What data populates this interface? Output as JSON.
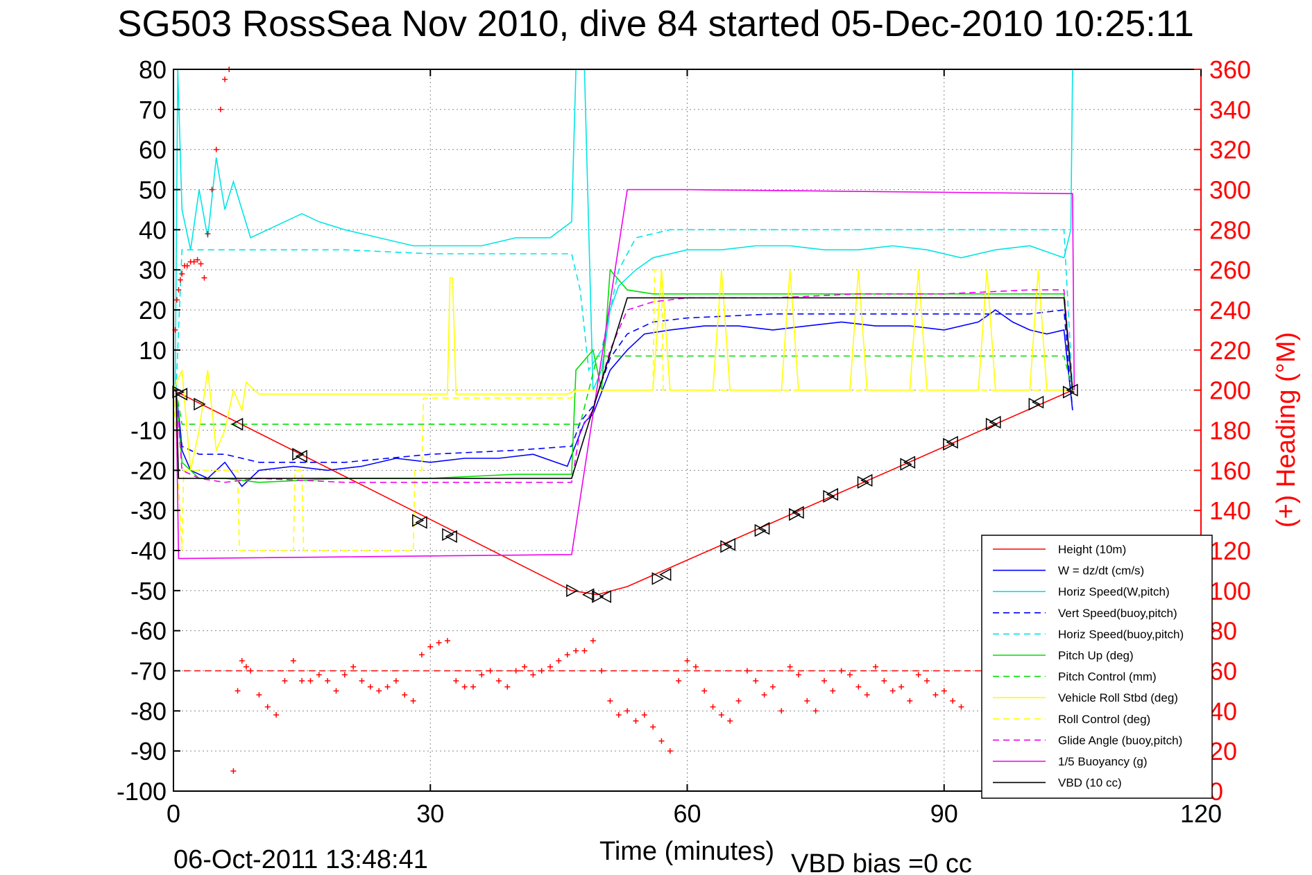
{
  "chart_data": {
    "type": "line",
    "title": "SG503 RossSea Nov 2010, dive 84 started 05-Dec-2010 10:25:11",
    "xlabel": "Time (minutes)",
    "ylabel_right": "(+) Heading (°M)",
    "footer_left": "06-Oct-2011 13:48:41",
    "footer_note": "VBD bias =0 cc",
    "xlim": [
      0,
      120
    ],
    "ylim": [
      -100,
      80
    ],
    "ylim_right": [
      0,
      360
    ],
    "x_ticks": [
      0,
      30,
      60,
      90,
      120
    ],
    "y_ticks": [
      -100,
      -90,
      -80,
      -70,
      -60,
      -50,
      -40,
      -30,
      -20,
      -10,
      0,
      10,
      20,
      30,
      40,
      50,
      60,
      70,
      80
    ],
    "y_right_ticks": [
      0,
      20,
      40,
      60,
      80,
      100,
      120,
      140,
      160,
      180,
      200,
      220,
      240,
      260,
      280,
      300,
      320,
      340,
      360
    ],
    "grid": true,
    "legend_position": "bottom-right",
    "colors": {
      "red": "#ff0000",
      "blue": "#0000ff",
      "cyan": "#00e5e5",
      "green": "#00dd00",
      "yellow": "#ffff00",
      "magenta": "#ee00ee",
      "black": "#000000",
      "grid": "#888888"
    },
    "series": [
      {
        "name": "Height (10m)",
        "color": "#ff0000",
        "style": "solid",
        "x": [
          0,
          46.5,
          49.5,
          53,
          105
        ],
        "y": [
          0,
          -50,
          -51,
          -49,
          0
        ]
      },
      {
        "name": "W = dz/dt (cm/s)",
        "color": "#0000ff",
        "style": "solid",
        "x": [
          0.3,
          0.8,
          1,
          2,
          4,
          6,
          8,
          10,
          14,
          18,
          22,
          26,
          30,
          34,
          38,
          42,
          46,
          48,
          49,
          51,
          53,
          55,
          58,
          62,
          66,
          70,
          74,
          78,
          82,
          86,
          90,
          94,
          96,
          98,
          100,
          102,
          104,
          105
        ],
        "y": [
          0,
          -10,
          -15,
          -20,
          -22,
          -18,
          -24,
          -20,
          -19,
          -20,
          -19,
          -17,
          -18,
          -17,
          -17,
          -16,
          -19,
          -8,
          -6,
          5,
          10,
          14,
          15,
          16,
          16,
          15,
          16,
          17,
          16,
          16,
          15,
          17,
          20,
          17,
          15,
          14,
          15,
          -5
        ]
      },
      {
        "name": "Horiz Speed(W,pitch)",
        "color": "#00e5e5",
        "style": "solid",
        "x": [
          0.2,
          0.5,
          1,
          2,
          3,
          4,
          5,
          6,
          7,
          9,
          11,
          13,
          15,
          17,
          20,
          24,
          28,
          32,
          36,
          40,
          44,
          46.5,
          47,
          48,
          49,
          50,
          51,
          52,
          54,
          56,
          60,
          64,
          68,
          72,
          76,
          80,
          84,
          88,
          92,
          96,
          100,
          104,
          104.8,
          105
        ],
        "y": [
          0,
          80,
          45,
          35,
          50,
          38,
          58,
          45,
          52,
          38,
          40,
          42,
          44,
          42,
          40,
          38,
          36,
          36,
          36,
          38,
          38,
          42,
          80,
          80,
          0,
          5,
          20,
          26,
          30,
          33,
          35,
          35,
          36,
          36,
          35,
          35,
          36,
          35,
          33,
          35,
          36,
          33,
          40,
          80
        ]
      },
      {
        "name": "Vert Speed(buoy,pitch)",
        "color": "#0000ff",
        "style": "dashed",
        "x": [
          0.3,
          1,
          3,
          6,
          10,
          20,
          30,
          40,
          46.5,
          47.5,
          49,
          51,
          53,
          56,
          60,
          70,
          80,
          90,
          100,
          104,
          105
        ],
        "y": [
          0,
          -14,
          -16,
          -16,
          -18,
          -18,
          -16,
          -15,
          -14,
          -8,
          -4,
          8,
          14,
          17,
          18,
          19,
          19,
          19,
          19,
          20,
          -5
        ]
      },
      {
        "name": "Horiz Speed(buoy,pitch)",
        "color": "#00e5e5",
        "style": "dashed",
        "x": [
          0.3,
          1,
          3,
          6,
          10,
          20,
          30,
          40,
          46.5,
          47.5,
          48.5,
          50,
          52,
          54,
          58,
          70,
          80,
          90,
          100,
          104,
          105
        ],
        "y": [
          0,
          35,
          35,
          35,
          35,
          35,
          34,
          34,
          34,
          25,
          5,
          10,
          30,
          38,
          40,
          40,
          40,
          40,
          40,
          40,
          0
        ]
      },
      {
        "name": "Pitch Up (deg)",
        "color": "#00dd00",
        "style": "solid",
        "x": [
          0.3,
          1,
          3,
          6,
          10,
          20,
          30,
          40,
          46.5,
          47,
          49,
          50,
          51,
          53,
          56,
          60,
          70,
          80,
          90,
          100,
          104,
          105
        ],
        "y": [
          0,
          -18,
          -22,
          -22,
          -23,
          -22,
          -22,
          -21,
          -21,
          5,
          10,
          0,
          30,
          25,
          24,
          24,
          24,
          24,
          24,
          24,
          24,
          0
        ]
      },
      {
        "name": "Pitch Control (mm)",
        "color": "#00dd00",
        "style": "dashed",
        "x": [
          0.3,
          1,
          46.5,
          47.5,
          48.5,
          49.5,
          50.5,
          52,
          104,
          105
        ],
        "y": [
          0,
          -8.5,
          -8.5,
          -8.5,
          0,
          8.5,
          8.5,
          8.5,
          8.5,
          0
        ]
      },
      {
        "name": "Vehicle Roll Stbd (deg)",
        "color": "#ffff00",
        "style": "solid",
        "x": [
          0,
          1,
          2,
          3,
          4,
          5,
          6,
          7,
          8,
          8.5,
          10,
          15,
          20,
          25,
          28,
          29,
          30,
          32,
          32.3,
          32.6,
          33,
          40,
          46,
          47,
          49,
          52,
          56,
          57,
          58,
          63,
          64,
          65,
          71,
          72,
          73,
          79,
          80,
          81,
          86,
          87,
          88,
          94,
          95,
          96,
          100,
          101,
          102,
          104,
          105
        ],
        "y": [
          0,
          5,
          -20,
          -10,
          5,
          -15,
          -10,
          0,
          -5,
          2,
          -1,
          -1,
          -1,
          -1,
          -1,
          -1,
          -1,
          -1,
          28,
          28,
          -1,
          -1,
          -1,
          0,
          0,
          0,
          0,
          30,
          0,
          0,
          30,
          0,
          0,
          30,
          0,
          0,
          30,
          0,
          0,
          30,
          0,
          0,
          30,
          0,
          0,
          30,
          0,
          0,
          0
        ]
      },
      {
        "name": "Roll Control (deg)",
        "color": "#ffff00",
        "style": "dashed",
        "x": [
          0,
          1,
          1.2,
          7.5,
          7.7,
          14,
          14.2,
          15,
          15.2,
          28,
          28.2,
          29,
          29.2,
          46.5,
          47,
          56,
          56.2,
          57,
          57.2,
          104,
          105
        ],
        "y": [
          0,
          -40,
          -20,
          -20,
          -40,
          -40,
          -20,
          -20,
          -40,
          -40,
          -20,
          -20,
          -2,
          -2,
          0,
          0,
          30,
          30,
          0,
          0,
          0
        ]
      },
      {
        "name": "Glide Angle (buoy,pitch)",
        "color": "#ee00ee",
        "style": "dashed",
        "x": [
          0.3,
          1,
          3,
          6,
          10,
          20,
          30,
          40,
          46.5,
          47.5,
          49,
          51,
          53,
          56,
          60,
          70,
          80,
          90,
          100,
          104,
          105
        ],
        "y": [
          0,
          -20,
          -22,
          -23,
          -22,
          -23,
          -23,
          -23,
          -23,
          -10,
          -5,
          10,
          20,
          22,
          23,
          23,
          24,
          24,
          25,
          25,
          0
        ]
      },
      {
        "name": "1/5 Buoyancy (g)",
        "color": "#ee00ee",
        "style": "solid",
        "x": [
          0.3,
          0.6,
          46.5,
          53,
          55,
          60,
          105,
          105.2
        ],
        "y": [
          0,
          -42,
          -41,
          50,
          50,
          50,
          49,
          0
        ]
      },
      {
        "name": "VBD (10 cc)",
        "color": "#000000",
        "style": "solid",
        "x": [
          0.3,
          0.6,
          46.5,
          53,
          104,
          105
        ],
        "y": [
          0,
          -22,
          -22,
          23,
          23,
          0
        ]
      }
    ],
    "heading_series": {
      "axis": "right",
      "color": "#ff0000",
      "marker": "+",
      "mean_heading": 60,
      "x": [
        0.2,
        0.4,
        0.6,
        0.8,
        1.0,
        1.3,
        1.6,
        2.0,
        2.4,
        2.8,
        3.2,
        3.6,
        4.0,
        4.5,
        5.0,
        5.5,
        6.0,
        6.5,
        7.0,
        7.5,
        8.0,
        8.5,
        9,
        10,
        11,
        12,
        13,
        14,
        15,
        16,
        17,
        18,
        19,
        20,
        21,
        22,
        23,
        24,
        25,
        26,
        27,
        28,
        29,
        30,
        31,
        32,
        33,
        34,
        35,
        36,
        37,
        38,
        39,
        40,
        41,
        42,
        43,
        44,
        45,
        46,
        47,
        48,
        49,
        50,
        51,
        52,
        53,
        54,
        55,
        56,
        57,
        58,
        59,
        60,
        61,
        62,
        63,
        64,
        65,
        66,
        67,
        68,
        69,
        70,
        71,
        72,
        73,
        74,
        75,
        76,
        77,
        78,
        79,
        80,
        81,
        82,
        83,
        84,
        85,
        86,
        87,
        88,
        89,
        90,
        91,
        92
      ],
      "y": [
        230,
        245,
        250,
        255,
        258,
        262,
        262,
        264,
        264,
        265,
        263,
        256,
        278,
        300,
        320,
        340,
        355,
        360,
        10,
        50,
        65,
        62,
        60,
        48,
        42,
        38,
        55,
        65,
        55,
        55,
        58,
        55,
        50,
        58,
        62,
        55,
        52,
        50,
        52,
        55,
        48,
        45,
        68,
        72,
        74,
        75,
        55,
        52,
        52,
        58,
        60,
        55,
        52,
        60,
        62,
        58,
        60,
        62,
        65,
        68,
        70,
        70,
        75,
        60,
        45,
        38,
        40,
        35,
        38,
        32,
        25,
        20,
        55,
        65,
        62,
        50,
        42,
        38,
        35,
        45,
        60,
        55,
        48,
        52,
        40,
        62,
        58,
        45,
        40,
        55,
        50,
        60,
        58,
        52,
        48,
        62,
        55,
        50,
        52,
        45,
        58,
        55,
        48,
        50,
        45,
        42
      ]
    },
    "marker_series": {
      "color": "#000000",
      "marker": "triangle",
      "x": [
        0.5,
        1.0,
        3.0,
        7.5,
        14.5,
        15.0,
        28.5,
        29.0,
        32.0,
        32.5,
        46.5,
        48.5,
        49.5,
        50.5,
        56.5,
        57.5,
        64.5,
        65.0,
        68.5,
        69.0,
        72.5,
        73.0,
        76.5,
        77.0,
        80.5,
        81.0,
        85.5,
        86.0,
        90.5,
        91.0,
        95.5,
        96.0,
        100.5,
        101.0,
        104.5,
        105.0
      ],
      "y": [
        -0.5,
        -1,
        -3.5,
        -8.5,
        -16,
        -16.5,
        -32.5,
        -33,
        -36,
        -36.5,
        -50,
        -51,
        -51.5,
        -51.5,
        -47,
        -46,
        -39,
        -38.5,
        -35,
        -34.5,
        -31,
        -30.5,
        -26.5,
        -26,
        -23,
        -22.5,
        -18.5,
        -18,
        -13.5,
        -13,
        -8.5,
        -8,
        -3.5,
        -3,
        -0.5,
        0
      ]
    }
  }
}
